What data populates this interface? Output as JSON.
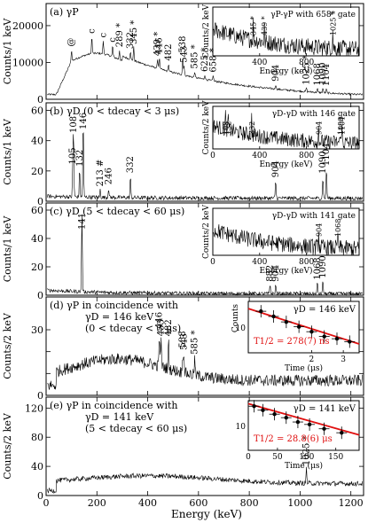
{
  "figure": {
    "xlabel": "Energy (keV)"
  },
  "chart_data": [
    {
      "id": "a",
      "type": "line",
      "label": "(a) γP",
      "ylabel": "Counts/1 keV",
      "xlim": [
        0,
        1250
      ],
      "ylim": [
        0,
        26000
      ],
      "yticks": [
        0,
        10000,
        20000
      ],
      "ytick_labels": [
        "0",
        "10000",
        "20000"
      ],
      "show_xtick_labels": false,
      "peaks": [
        {
          "label": "@",
          "x": 100
        },
        {
          "label": "c",
          "x": 180
        },
        {
          "label": "c",
          "x": 225
        },
        {
          "label": "c",
          "x": 262
        },
        {
          "label": "289 *",
          "x": 289
        },
        {
          "label": "332",
          "x": 332
        },
        {
          "label": "345 *",
          "x": 345
        },
        {
          "label": "439 *",
          "x": 439
        },
        {
          "label": "446",
          "x": 446
        },
        {
          "label": "482",
          "x": 482
        },
        {
          "label": "538",
          "x": 538
        },
        {
          "label": "543",
          "x": 543
        },
        {
          "label": "585 *",
          "x": 585
        },
        {
          "label": "625 *",
          "x": 625
        },
        {
          "label": "658 *",
          "x": 658
        },
        {
          "label": "904",
          "x": 904
        },
        {
          "label": "1025 *",
          "x": 1025
        },
        {
          "label": "1068",
          "x": 1068
        },
        {
          "label": "1090",
          "x": 1090
        },
        {
          "label": "1104",
          "x": 1104
        }
      ],
      "inset": {
        "label": "γP-γP with 658* gate",
        "ylabel": "Counts/2 keV",
        "xlabel": "Energy (keV)",
        "xlim": [
          0,
          1250
        ],
        "xticks": [
          400,
          800
        ],
        "xtick_labels": [
          "400",
          "800"
        ],
        "peaks": [
          {
            "label": "345 *",
            "x": 345
          },
          {
            "label": "439 *",
            "x": 439
          },
          {
            "label": "1025 *",
            "x": 1025
          }
        ]
      }
    },
    {
      "id": "b",
      "type": "line",
      "label": "(b) γD (0 < tdecay < 3 μs)",
      "ylabel": "Counts/1 keV",
      "xlim": [
        0,
        1250
      ],
      "ylim": [
        0,
        65
      ],
      "yticks": [
        0,
        20,
        40,
        60
      ],
      "ytick_labels": [
        "0",
        "20",
        "40",
        "60"
      ],
      "show_xtick_labels": false,
      "peaks": [
        {
          "label": "105",
          "x": 105
        },
        {
          "label": "108",
          "x": 108
        },
        {
          "label": "132",
          "x": 132
        },
        {
          "label": "146",
          "x": 146
        },
        {
          "label": "213 #",
          "x": 213
        },
        {
          "label": "246",
          "x": 246
        },
        {
          "label": "332",
          "x": 332
        },
        {
          "label": "904",
          "x": 904
        },
        {
          "label": "1090",
          "x": 1090
        },
        {
          "label": "1104",
          "x": 1104
        }
      ],
      "inset": {
        "label": "γD-γD with 146 gate",
        "ylabel": "Counts/2 keV",
        "xlabel": "Energy (keV)",
        "xlim": [
          0,
          1250
        ],
        "xticks": [
          0,
          400,
          800
        ],
        "xtick_labels": [
          "0",
          "400",
          "800"
        ],
        "peaks": [
          {
            "label": "108",
            "x": 108
          },
          {
            "label": "132",
            "x": 132
          },
          {
            "label": "332",
            "x": 332
          },
          {
            "label": "904",
            "x": 904
          },
          {
            "label": "1090",
            "x": 1090
          },
          {
            "label": "1104",
            "x": 1104
          }
        ]
      }
    },
    {
      "id": "c",
      "type": "line",
      "label": "(c) γD (5 < tdecay < 60 μs)",
      "ylabel": "Counts/1 keV",
      "xlim": [
        0,
        1250
      ],
      "ylim": [
        0,
        65
      ],
      "yticks": [
        0,
        20,
        40,
        60
      ],
      "ytick_labels": [
        "0",
        "20",
        "40",
        "60"
      ],
      "show_xtick_labels": false,
      "peaks": [
        {
          "label": "141",
          "x": 141
        },
        {
          "label": "882",
          "x": 882
        },
        {
          "label": "904",
          "x": 904
        },
        {
          "label": "1068",
          "x": 1068
        },
        {
          "label": "1090",
          "x": 1090
        }
      ],
      "inset": {
        "label": "γD-γD with 141 gate",
        "ylabel": "Counts/2 keV",
        "xlabel": "Energy (keV)",
        "xlim": [
          0,
          1250
        ],
        "xticks": [
          0,
          400,
          800
        ],
        "xtick_labels": [
          "0",
          "400",
          "800"
        ],
        "peaks": [
          {
            "label": "904",
            "x": 904
          },
          {
            "label": "1068",
            "x": 1068
          }
        ]
      }
    },
    {
      "id": "d",
      "type": "line",
      "label": "(d) γP in coincidence with",
      "label2": "γD = 146 keV",
      "label3": "(0 < tdecay < 3 μs)",
      "ylabel": "Counts/2 keV",
      "xlim": [
        0,
        1250
      ],
      "ylim": [
        0,
        45
      ],
      "yticks": [
        0,
        10,
        20,
        30
      ],
      "ytick_labels": [
        "0",
        "",
        "",
        "30"
      ],
      "show_xtick_labels": false,
      "peaks": [
        {
          "label": "446",
          "x": 446
        },
        {
          "label": "453",
          "x": 453
        },
        {
          "label": "482",
          "x": 482
        },
        {
          "label": "538",
          "x": 538
        },
        {
          "label": "543",
          "x": 543
        },
        {
          "label": "585 *",
          "x": 585
        }
      ],
      "inset": {
        "type": "scatter",
        "ylabel": "Counts",
        "xlabel": "Time (μs)",
        "xlim": [
          0,
          3.5
        ],
        "xticks": [
          2,
          3
        ],
        "xtick_labels": [
          "2",
          "3"
        ],
        "ylog": true,
        "ytick_labels": [
          "10"
        ],
        "gate_label": "γD = 146 keV",
        "fit_label": "T1/2 = 278(7) ns",
        "points": [
          {
            "x": 0.4,
            "y": 60
          },
          {
            "x": 0.8,
            "y": 36
          },
          {
            "x": 1.2,
            "y": 21
          },
          {
            "x": 1.6,
            "y": 13
          },
          {
            "x": 2.0,
            "y": 8
          },
          {
            "x": 2.4,
            "y": 5
          },
          {
            "x": 2.8,
            "y": 4
          },
          {
            "x": 3.2,
            "y": 3
          }
        ]
      }
    },
    {
      "id": "e",
      "type": "line",
      "label": "(e) γP in coincidence with",
      "label2": "γD = 141 keV",
      "label3": "(5 < tdecay < 60 μs)",
      "ylabel": "Counts/2 keV",
      "xlim": [
        0,
        1250
      ],
      "ylim": [
        0,
        135
      ],
      "yticks": [
        0,
        40,
        80,
        120
      ],
      "ytick_labels": [
        "0",
        "40",
        "80",
        "120"
      ],
      "show_xtick_labels": true,
      "xticks": [
        0,
        200,
        400,
        600,
        800,
        1000,
        1200
      ],
      "xtick_labels": [
        "0",
        "200",
        "400",
        "600",
        "800",
        "1000",
        "1200"
      ],
      "peaks": [
        {
          "label": "1025 *",
          "x": 1025
        }
      ],
      "inset": {
        "type": "scatter",
        "xlabel": "Time (μs)",
        "xlim": [
          0,
          190
        ],
        "xticks": [
          0,
          50,
          100,
          150
        ],
        "xtick_labels": [
          "0",
          "50",
          "100",
          "150"
        ],
        "ylog": true,
        "ytick_labels": [
          "10"
        ],
        "gate_label": "γD = 141 keV",
        "fit_label": "T1/2 = 28.8(6) μs",
        "points": [
          {
            "x": 10,
            "y": 90
          },
          {
            "x": 25,
            "y": 60
          },
          {
            "x": 45,
            "y": 40
          },
          {
            "x": 65,
            "y": 28
          },
          {
            "x": 85,
            "y": 18
          },
          {
            "x": 105,
            "y": 14
          },
          {
            "x": 130,
            "y": 9
          },
          {
            "x": 160,
            "y": 6
          }
        ]
      }
    }
  ]
}
